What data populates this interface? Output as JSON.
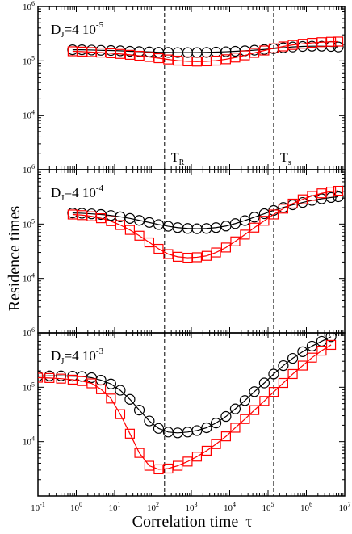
{
  "chart_data": {
    "type": "scatter",
    "xlabel": "Correlation time",
    "xlabel_symbol": "τ",
    "ylabel": "Residence times",
    "x_scale": "log",
    "y_scale": "log",
    "xlim": [
      0.1,
      10000000
    ],
    "x_ticks": [
      {
        "base": "10",
        "exp": "-1",
        "value": 0.1
      },
      {
        "base": "10",
        "exp": "0",
        "value": 1
      },
      {
        "base": "10",
        "exp": "1",
        "value": 10
      },
      {
        "base": "10",
        "exp": "2",
        "value": 100
      },
      {
        "base": "10",
        "exp": "3",
        "value": 1000
      },
      {
        "base": "10",
        "exp": "4",
        "value": 10000
      },
      {
        "base": "10",
        "exp": "5",
        "value": 100000
      },
      {
        "base": "10",
        "exp": "6",
        "value": 1000000
      },
      {
        "base": "10",
        "exp": "7",
        "value": 10000000
      }
    ],
    "y_ticks": [
      {
        "base": "10",
        "exp": "4",
        "value": 10000
      },
      {
        "base": "10",
        "exp": "5",
        "value": 100000
      },
      {
        "base": "10",
        "exp": "6",
        "value": 1000000
      }
    ],
    "series_styles": [
      {
        "marker": "circle",
        "color": "#000000"
      },
      {
        "marker": "square",
        "color": "#ff0000"
      }
    ],
    "vertical_lines": [
      {
        "label": "T",
        "sub": "R",
        "x": 200
      },
      {
        "label": "T",
        "sub": "s",
        "x": 140000
      }
    ],
    "x": [
      0.8,
      1.4,
      2.5,
      4.4,
      8,
      14,
      25,
      44,
      80,
      140,
      250,
      440,
      800,
      1400,
      2500,
      4400,
      8000,
      14000,
      25000,
      44000,
      80000,
      140000,
      250000,
      440000,
      800000,
      1400000,
      2500000,
      4400000
    ],
    "panels": [
      {
        "label_main": "D",
        "label_sub": "J",
        "label_value": "=4  10",
        "label_exp": "-5",
        "ylim": [
          1000,
          1000000
        ],
        "series": [
          {
            "x": [
              0.8,
              1.4,
              2.5,
              4.4,
              8,
              14,
              25,
              44,
              80,
              140,
              250,
              440,
              800,
              1400,
              2500,
              4400,
              8000,
              14000,
              25000,
              44000,
              80000,
              140000,
              250000,
              440000,
              800000,
              1400000,
              2500000,
              4400000,
              6800000
            ],
            "y": [
              160000,
              160000,
              158000,
              156000,
              155000,
              153000,
              150000,
              148000,
              146000,
              144000,
              143000,
              142000,
              142000,
              142000,
              143000,
              145000,
              147000,
              150000,
              153000,
              157000,
              162000,
              168000,
              174000,
              180000,
              184000,
              186000,
              186000,
              184000,
              180000
            ]
          },
          {
            "x": [
              0.8,
              1.4,
              2.5,
              4.4,
              8,
              14,
              25,
              44,
              80,
              140,
              250,
              440,
              800,
              1400,
              2500,
              4400,
              8000,
              14000,
              25000,
              44000,
              80000,
              140000,
              250000,
              440000,
              800000,
              1400000,
              2500000,
              4400000,
              6800000
            ],
            "y": [
              150000,
              148000,
              145000,
              142000,
              138000,
              134000,
              129000,
              124000,
              118000,
              112000,
              106000,
              101000,
              98000,
              97000,
              98000,
              101000,
              107000,
              115000,
              126000,
              140000,
              155000,
              170000,
              184000,
              196000,
              206000,
              214000,
              220000,
              224000,
              226000
            ]
          }
        ]
      },
      {
        "label_main": "D",
        "label_sub": "J",
        "label_value": "=4  10",
        "label_exp": "-4",
        "ylim": [
          1000,
          1000000
        ],
        "series": [
          {
            "x": [
              0.8,
              1.4,
              2.5,
              4.4,
              8,
              14,
              25,
              44,
              80,
              140,
              250,
              440,
              800,
              1400,
              2500,
              4400,
              8000,
              14000,
              25000,
              44000,
              80000,
              140000,
              250000,
              440000,
              800000,
              1400000,
              2500000,
              4400000,
              6800000
            ],
            "y": [
              160000,
              158000,
              154000,
              150000,
              144000,
              136000,
              127000,
              117000,
              107000,
              98000,
              91000,
              86000,
              83000,
              82000,
              83000,
              86000,
              92000,
              102000,
              116000,
              134000,
              155000,
              178000,
              202000,
              226000,
              250000,
              272000,
              292000,
              308000,
              318000
            ]
          },
          {
            "x": [
              0.8,
              1.4,
              2.5,
              4.4,
              8,
              14,
              25,
              44,
              80,
              140,
              250,
              440,
              800,
              1400,
              2500,
              4400,
              8000,
              14000,
              25000,
              44000,
              80000,
              140000,
              250000,
              440000,
              800000,
              1400000,
              2500000,
              4400000,
              6800000
            ],
            "y": [
              150000,
              146000,
              139000,
              128000,
              113000,
              96000,
              78000,
              61000,
              46000,
              35000,
              28000,
              25000,
              24000,
              24500,
              26000,
              30000,
              37000,
              48000,
              64000,
              86000,
              115000,
              150000,
              192000,
              238000,
              285000,
              330000,
              368000,
              396000,
              410000
            ]
          }
        ]
      },
      {
        "label_main": "D",
        "label_sub": "J",
        "label_value": "=4  10",
        "label_exp": "-3",
        "ylim": [
          1000,
          1000000
        ],
        "series": [
          {
            "x": [
              0.1,
              0.2,
              0.4,
              0.8,
              1.4,
              2.5,
              4.4,
              8,
              14,
              25,
              44,
              80,
              140,
              250,
              440,
              800,
              1400,
              2500,
              4400,
              8000,
              14000,
              25000,
              44000,
              80000,
              140000,
              250000,
              440000,
              800000,
              1400000,
              2500000,
              4400000
            ],
            "y": [
              160000,
              162000,
              162000,
              160000,
              158000,
              150000,
              135000,
              115000,
              88000,
              60000,
              38000,
              24000,
              17500,
              15000,
              14500,
              15000,
              16000,
              18000,
              22000,
              29000,
              40000,
              57000,
              83000,
              120000,
              175000,
              250000,
              340000,
              450000,
              570000,
              700000,
              850000
            ]
          },
          {
            "x": [
              0.1,
              0.2,
              0.4,
              0.8,
              1.4,
              2.5,
              4.4,
              8,
              14,
              25,
              44,
              80,
              140,
              250,
              440,
              800,
              1400,
              2500,
              4400,
              8000,
              14000,
              25000,
              44000,
              80000,
              140000,
              250000,
              440000,
              800000,
              1400000,
              2500000,
              4400000
            ],
            "y": [
              150000,
              148000,
              144000,
              138000,
              130000,
              118000,
              92000,
              62000,
              32000,
              14000,
              6200,
              3600,
              3100,
              3200,
              3600,
              4300,
              5300,
              6800,
              9000,
              12500,
              18000,
              26000,
              38000,
              56000,
              82000,
              120000,
              175000,
              250000,
              350000,
              470000,
              600000
            ]
          }
        ]
      }
    ]
  }
}
